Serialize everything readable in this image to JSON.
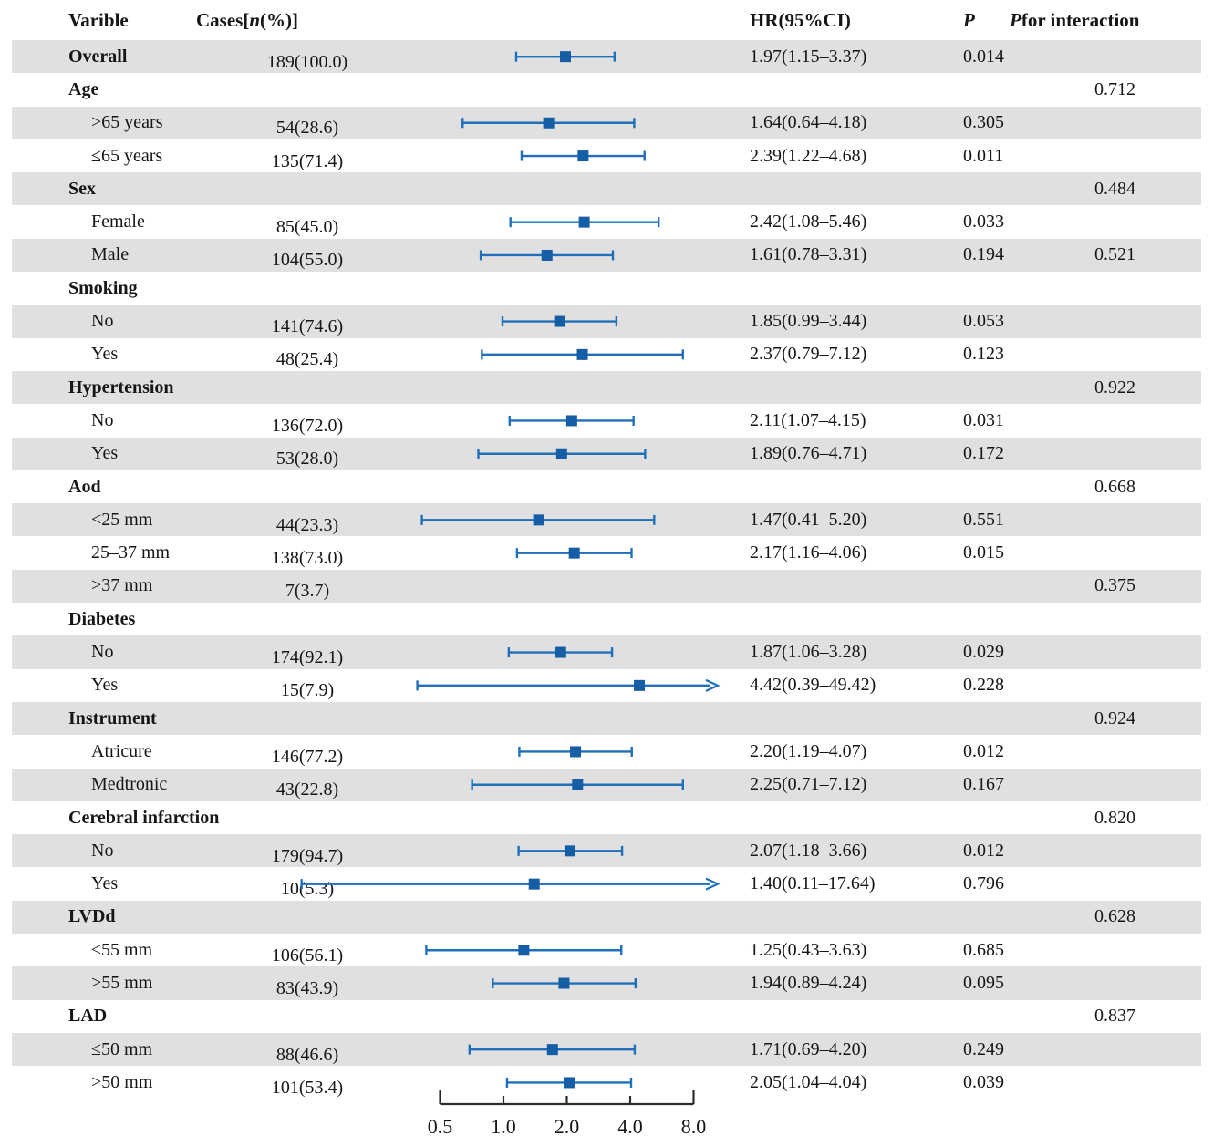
{
  "figure": {
    "header": {
      "variable": "Varible",
      "cases_pre": "Cases[",
      "cases_n": "n",
      "cases_post": "(%)]",
      "hr": "HR(95%CI)",
      "p": "P",
      "p_interaction_p": "P",
      "p_interaction_rest": " for interaction"
    },
    "colors": {
      "row_shade": "#e0e0e0",
      "ci_line": "#1f6fba",
      "marker": "#155da4",
      "axis": "#2b2b2b",
      "text": "#161616"
    }
  },
  "chart_data": {
    "type": "forest",
    "x_axis": {
      "scale": "log2",
      "tick_labels": [
        "0.5",
        "1.0",
        "2.0",
        "4.0",
        "8.0"
      ],
      "tick_values": [
        0.5,
        1,
        2,
        4,
        8
      ],
      "range": [
        0.5,
        8
      ]
    },
    "rows": [
      {
        "label": "Overall",
        "level": "group",
        "shaded": true,
        "cases": "189(100.0)",
        "hr": 1.97,
        "lo": 1.15,
        "hi": 3.37,
        "ci_text": "1.97(1.15–3.37)",
        "p": "0.014",
        "p_int": "",
        "arrow": false
      },
      {
        "label": "Age",
        "level": "group",
        "shaded": false,
        "cases": "",
        "p_int": "0.712"
      },
      {
        "label": ">65 years",
        "level": "sub",
        "shaded": true,
        "cases": "54(28.6)",
        "hr": 1.64,
        "lo": 0.64,
        "hi": 4.18,
        "ci_text": "1.64(0.64–4.18)",
        "p": "0.305",
        "p_int": ""
      },
      {
        "label": "≤65 years",
        "level": "sub",
        "shaded": false,
        "cases": "135(71.4)",
        "hr": 2.39,
        "lo": 1.22,
        "hi": 4.68,
        "ci_text": "2.39(1.22–4.68)",
        "p": "0.011",
        "p_int": ""
      },
      {
        "label": "Sex",
        "level": "group",
        "shaded": true,
        "cases": "",
        "p_int": "0.484"
      },
      {
        "label": "Female",
        "level": "sub",
        "shaded": false,
        "cases": "85(45.0)",
        "hr": 2.42,
        "lo": 1.08,
        "hi": 5.46,
        "ci_text": "2.42(1.08–5.46)",
        "p": "0.033",
        "p_int": ""
      },
      {
        "label": "Male",
        "level": "sub",
        "shaded": true,
        "cases": "104(55.0)",
        "hr": 1.61,
        "lo": 0.78,
        "hi": 3.31,
        "ci_text": "1.61(0.78–3.31)",
        "p": "0.194",
        "p_int": "0.521"
      },
      {
        "label": "Smoking",
        "level": "group",
        "shaded": false,
        "cases": "",
        "p_int": ""
      },
      {
        "label": "No",
        "level": "sub",
        "shaded": true,
        "cases": "141(74.6)",
        "hr": 1.85,
        "lo": 0.99,
        "hi": 3.44,
        "ci_text": "1.85(0.99–3.44)",
        "p": "0.053",
        "p_int": ""
      },
      {
        "label": "Yes",
        "level": "sub",
        "shaded": false,
        "cases": "48(25.4)",
        "hr": 2.37,
        "lo": 0.79,
        "hi": 7.12,
        "ci_text": "2.37(0.79–7.12)",
        "p": "0.123",
        "p_int": ""
      },
      {
        "label": "Hypertension",
        "level": "group",
        "shaded": true,
        "cases": "",
        "p_int": "0.922"
      },
      {
        "label": "No",
        "level": "sub",
        "shaded": false,
        "cases": "136(72.0)",
        "hr": 2.11,
        "lo": 1.07,
        "hi": 4.15,
        "ci_text": "2.11(1.07–4.15)",
        "p": "0.031",
        "p_int": ""
      },
      {
        "label": "Yes",
        "level": "sub",
        "shaded": true,
        "cases": "53(28.0)",
        "hr": 1.89,
        "lo": 0.76,
        "hi": 4.71,
        "ci_text": "1.89(0.76–4.71)",
        "p": "0.172",
        "p_int": ""
      },
      {
        "label": "Aod",
        "level": "group",
        "shaded": false,
        "cases": "",
        "p_int": "0.668"
      },
      {
        "label": "<25 mm",
        "level": "sub",
        "shaded": true,
        "cases": "44(23.3)",
        "hr": 1.47,
        "lo": 0.41,
        "hi": 5.2,
        "ci_text": "1.47(0.41–5.20)",
        "p": "0.551",
        "p_int": ""
      },
      {
        "label": "25–37 mm",
        "level": "sub",
        "shaded": false,
        "cases": "138(73.0)",
        "hr": 2.17,
        "lo": 1.16,
        "hi": 4.06,
        "ci_text": "2.17(1.16–4.06)",
        "p": "0.015",
        "p_int": ""
      },
      {
        "label": ">37 mm",
        "level": "sub",
        "shaded": true,
        "cases": "7(3.7)",
        "p_int": "0.375"
      },
      {
        "label": "Diabetes",
        "level": "group",
        "shaded": false,
        "cases": "",
        "p_int": ""
      },
      {
        "label": "No",
        "level": "sub",
        "shaded": true,
        "cases": "174(92.1)",
        "hr": 1.87,
        "lo": 1.06,
        "hi": 3.28,
        "ci_text": "1.87(1.06–3.28)",
        "p": "0.029",
        "p_int": ""
      },
      {
        "label": "Yes",
        "level": "sub",
        "shaded": false,
        "cases": "15(7.9)",
        "hr": 4.42,
        "lo": 0.39,
        "hi": 49.42,
        "ci_text": "4.42(0.39–49.42)",
        "p": "0.228",
        "p_int": "",
        "arrow": true
      },
      {
        "label": "Instrument",
        "level": "group",
        "shaded": true,
        "cases": "",
        "p_int": "0.924"
      },
      {
        "label": "Atricure",
        "level": "sub",
        "shaded": false,
        "cases": "146(77.2)",
        "hr": 2.2,
        "lo": 1.19,
        "hi": 4.07,
        "ci_text": "2.20(1.19–4.07)",
        "p": "0.012",
        "p_int": ""
      },
      {
        "label": "Medtronic",
        "level": "sub",
        "shaded": true,
        "cases": "43(22.8)",
        "hr": 2.25,
        "lo": 0.71,
        "hi": 7.12,
        "ci_text": "2.25(0.71–7.12)",
        "p": "0.167",
        "p_int": ""
      },
      {
        "label": "Cerebral infarction",
        "level": "group",
        "shaded": false,
        "cases": "",
        "p_int": "0.820"
      },
      {
        "label": "No",
        "level": "sub",
        "shaded": true,
        "cases": "179(94.7)",
        "hr": 2.07,
        "lo": 1.18,
        "hi": 3.66,
        "ci_text": "2.07(1.18–3.66)",
        "p": "0.012",
        "p_int": ""
      },
      {
        "label": "Yes",
        "level": "sub",
        "shaded": false,
        "cases": "10(5.3)",
        "hr": 1.4,
        "lo": 0.11,
        "hi": 17.64,
        "ci_text": "1.40(0.11–17.64)",
        "p": "0.796",
        "p_int": "",
        "arrow": true
      },
      {
        "label": "LVDd",
        "level": "group",
        "shaded": true,
        "cases": "",
        "p_int": "0.628"
      },
      {
        "label": "≤55 mm",
        "level": "sub",
        "shaded": false,
        "cases": "106(56.1)",
        "hr": 1.25,
        "lo": 0.43,
        "hi": 3.63,
        "ci_text": "1.25(0.43–3.63)",
        "p": "0.685",
        "p_int": ""
      },
      {
        "label": ">55 mm",
        "level": "sub",
        "shaded": true,
        "cases": "83(43.9)",
        "hr": 1.94,
        "lo": 0.89,
        "hi": 4.24,
        "ci_text": "1.94(0.89–4.24)",
        "p": "0.095",
        "p_int": ""
      },
      {
        "label": "LAD",
        "level": "group",
        "shaded": false,
        "cases": "",
        "p_int": "0.837"
      },
      {
        "label": "≤50 mm",
        "level": "sub",
        "shaded": true,
        "cases": "88(46.6)",
        "hr": 1.71,
        "lo": 0.69,
        "hi": 4.2,
        "ci_text": "1.71(0.69–4.20)",
        "p": "0.249",
        "p_int": ""
      },
      {
        "label": ">50 mm",
        "level": "sub",
        "shaded": false,
        "cases": "101(53.4)",
        "hr": 2.05,
        "lo": 1.04,
        "hi": 4.04,
        "ci_text": "2.05(1.04–4.04)",
        "p": "0.039",
        "p_int": ""
      }
    ]
  }
}
